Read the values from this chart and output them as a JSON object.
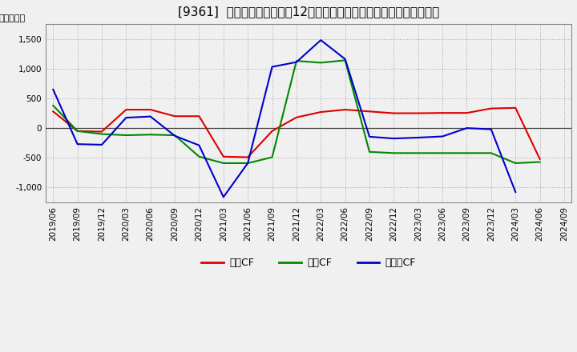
{
  "title": "[9361]  キャッシュフローの12か月移動合計の対前年同期増減額の推移",
  "ylabel": "（百万円）",
  "background_color": "#f0f0f0",
  "plot_bg_color": "#f0f0f0",
  "grid_color": "#aaaaaa",
  "ylim": [
    -1250,
    1750
  ],
  "yticks": [
    -1000,
    -500,
    0,
    500,
    1000,
    1500
  ],
  "x_labels": [
    "2019/06",
    "2019/09",
    "2019/12",
    "2020/03",
    "2020/06",
    "2020/09",
    "2020/12",
    "2021/03",
    "2021/06",
    "2021/09",
    "2021/12",
    "2022/03",
    "2022/06",
    "2022/09",
    "2022/12",
    "2023/03",
    "2023/06",
    "2023/09",
    "2023/12",
    "2024/03",
    "2024/06",
    "2024/09"
  ],
  "operating_cf": [
    280,
    -50,
    -60,
    310,
    310,
    200,
    200,
    -480,
    -490,
    -50,
    180,
    270,
    310,
    280,
    250,
    250,
    255,
    255,
    330,
    340,
    -520,
    null
  ],
  "investing_cf": [
    380,
    -50,
    -100,
    -120,
    -110,
    -120,
    -480,
    -590,
    -590,
    -490,
    1130,
    1100,
    1140,
    -400,
    -420,
    -420,
    -420,
    -420,
    -420,
    -590,
    -570,
    null
  ],
  "free_cf": [
    650,
    -270,
    -280,
    175,
    195,
    -130,
    -290,
    -1160,
    -590,
    1030,
    1110,
    1480,
    1160,
    -145,
    -175,
    -160,
    -140,
    0,
    -20,
    -1075,
    null,
    null
  ],
  "legend_labels": [
    "営業CF",
    "投資CF",
    "フリーCF"
  ],
  "line_colors": [
    "#dd0000",
    "#008800",
    "#0000cc"
  ],
  "line_width": 1.5,
  "title_fontsize": 11,
  "tick_fontsize": 7.5,
  "legend_fontsize": 9
}
